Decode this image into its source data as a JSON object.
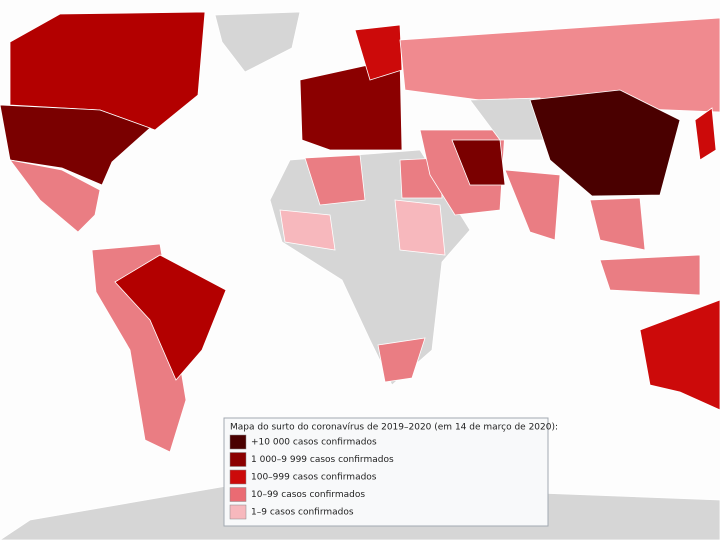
{
  "legend": {
    "title": "Mapa do surto do coronavírus de 2019–2020 (em 14 de março de 2020):",
    "items": [
      {
        "label": "+10 000 casos confirmados",
        "color": "#4a0000"
      },
      {
        "label": "1 000–9 999 casos confirmados",
        "color": "#8b0000"
      },
      {
        "label": "100–999 casos confirmados",
        "color": "#cc0a0a"
      },
      {
        "label": "10–99 casos confirmados",
        "color": "#ea6b73"
      },
      {
        "label": "1–9 casos confirmados",
        "color": "#f7b8bd"
      }
    ]
  }
}
